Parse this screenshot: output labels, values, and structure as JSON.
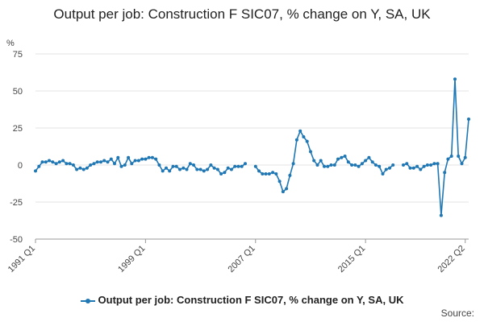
{
  "chart_data": {
    "type": "line",
    "title": "Output per job: Construction F SIC07, % change on Y, SA, UK",
    "ylabel": "%",
    "xlabel": "",
    "ylim": [
      -50,
      75
    ],
    "yticks": [
      75,
      50,
      25,
      0,
      -25,
      -50
    ],
    "xtick_labels": [
      "1991 Q1",
      "1999 Q1",
      "2007 Q1",
      "2015 Q1",
      "2022 Q2"
    ],
    "xtick_index": [
      0,
      32,
      64,
      96,
      125
    ],
    "series": [
      {
        "name": "Output per job: Construction F SIC07, % change on Y, SA, UK",
        "color": "#1f77b4",
        "values": [
          -4,
          -1,
          2,
          2,
          3,
          2,
          1,
          2,
          3,
          1,
          1,
          0,
          -3,
          -2,
          -3,
          -2,
          0,
          1,
          2,
          2,
          3,
          2,
          4,
          1,
          5,
          -1,
          0,
          5,
          1,
          3,
          3,
          4,
          4,
          5,
          5,
          4,
          0,
          -4,
          -2,
          -4,
          -1,
          -1,
          -3,
          -2,
          -3,
          1,
          0,
          -3,
          -3,
          -4,
          -3,
          0,
          -2,
          -3,
          -6,
          -5,
          -2,
          -3,
          -1,
          -1,
          -1,
          1,
          null,
          null,
          -1,
          -4,
          -6,
          -6,
          -6,
          -5,
          -6,
          -11,
          -18,
          -16,
          -7,
          1,
          17,
          23,
          19,
          16,
          9,
          3,
          0,
          3,
          -1,
          -1,
          0,
          0,
          4,
          5,
          6,
          2,
          0,
          0,
          -1,
          1,
          3,
          5,
          2,
          0,
          -1,
          -6,
          -3,
          -2,
          0,
          null,
          null,
          0,
          1,
          -2,
          -2,
          -1,
          -3,
          -1,
          0,
          0,
          1,
          1,
          -34,
          -5,
          4,
          6,
          58,
          6,
          1,
          5,
          31
        ]
      }
    ],
    "grid": true,
    "legend_position": "bottom"
  },
  "source_label": "Source:"
}
